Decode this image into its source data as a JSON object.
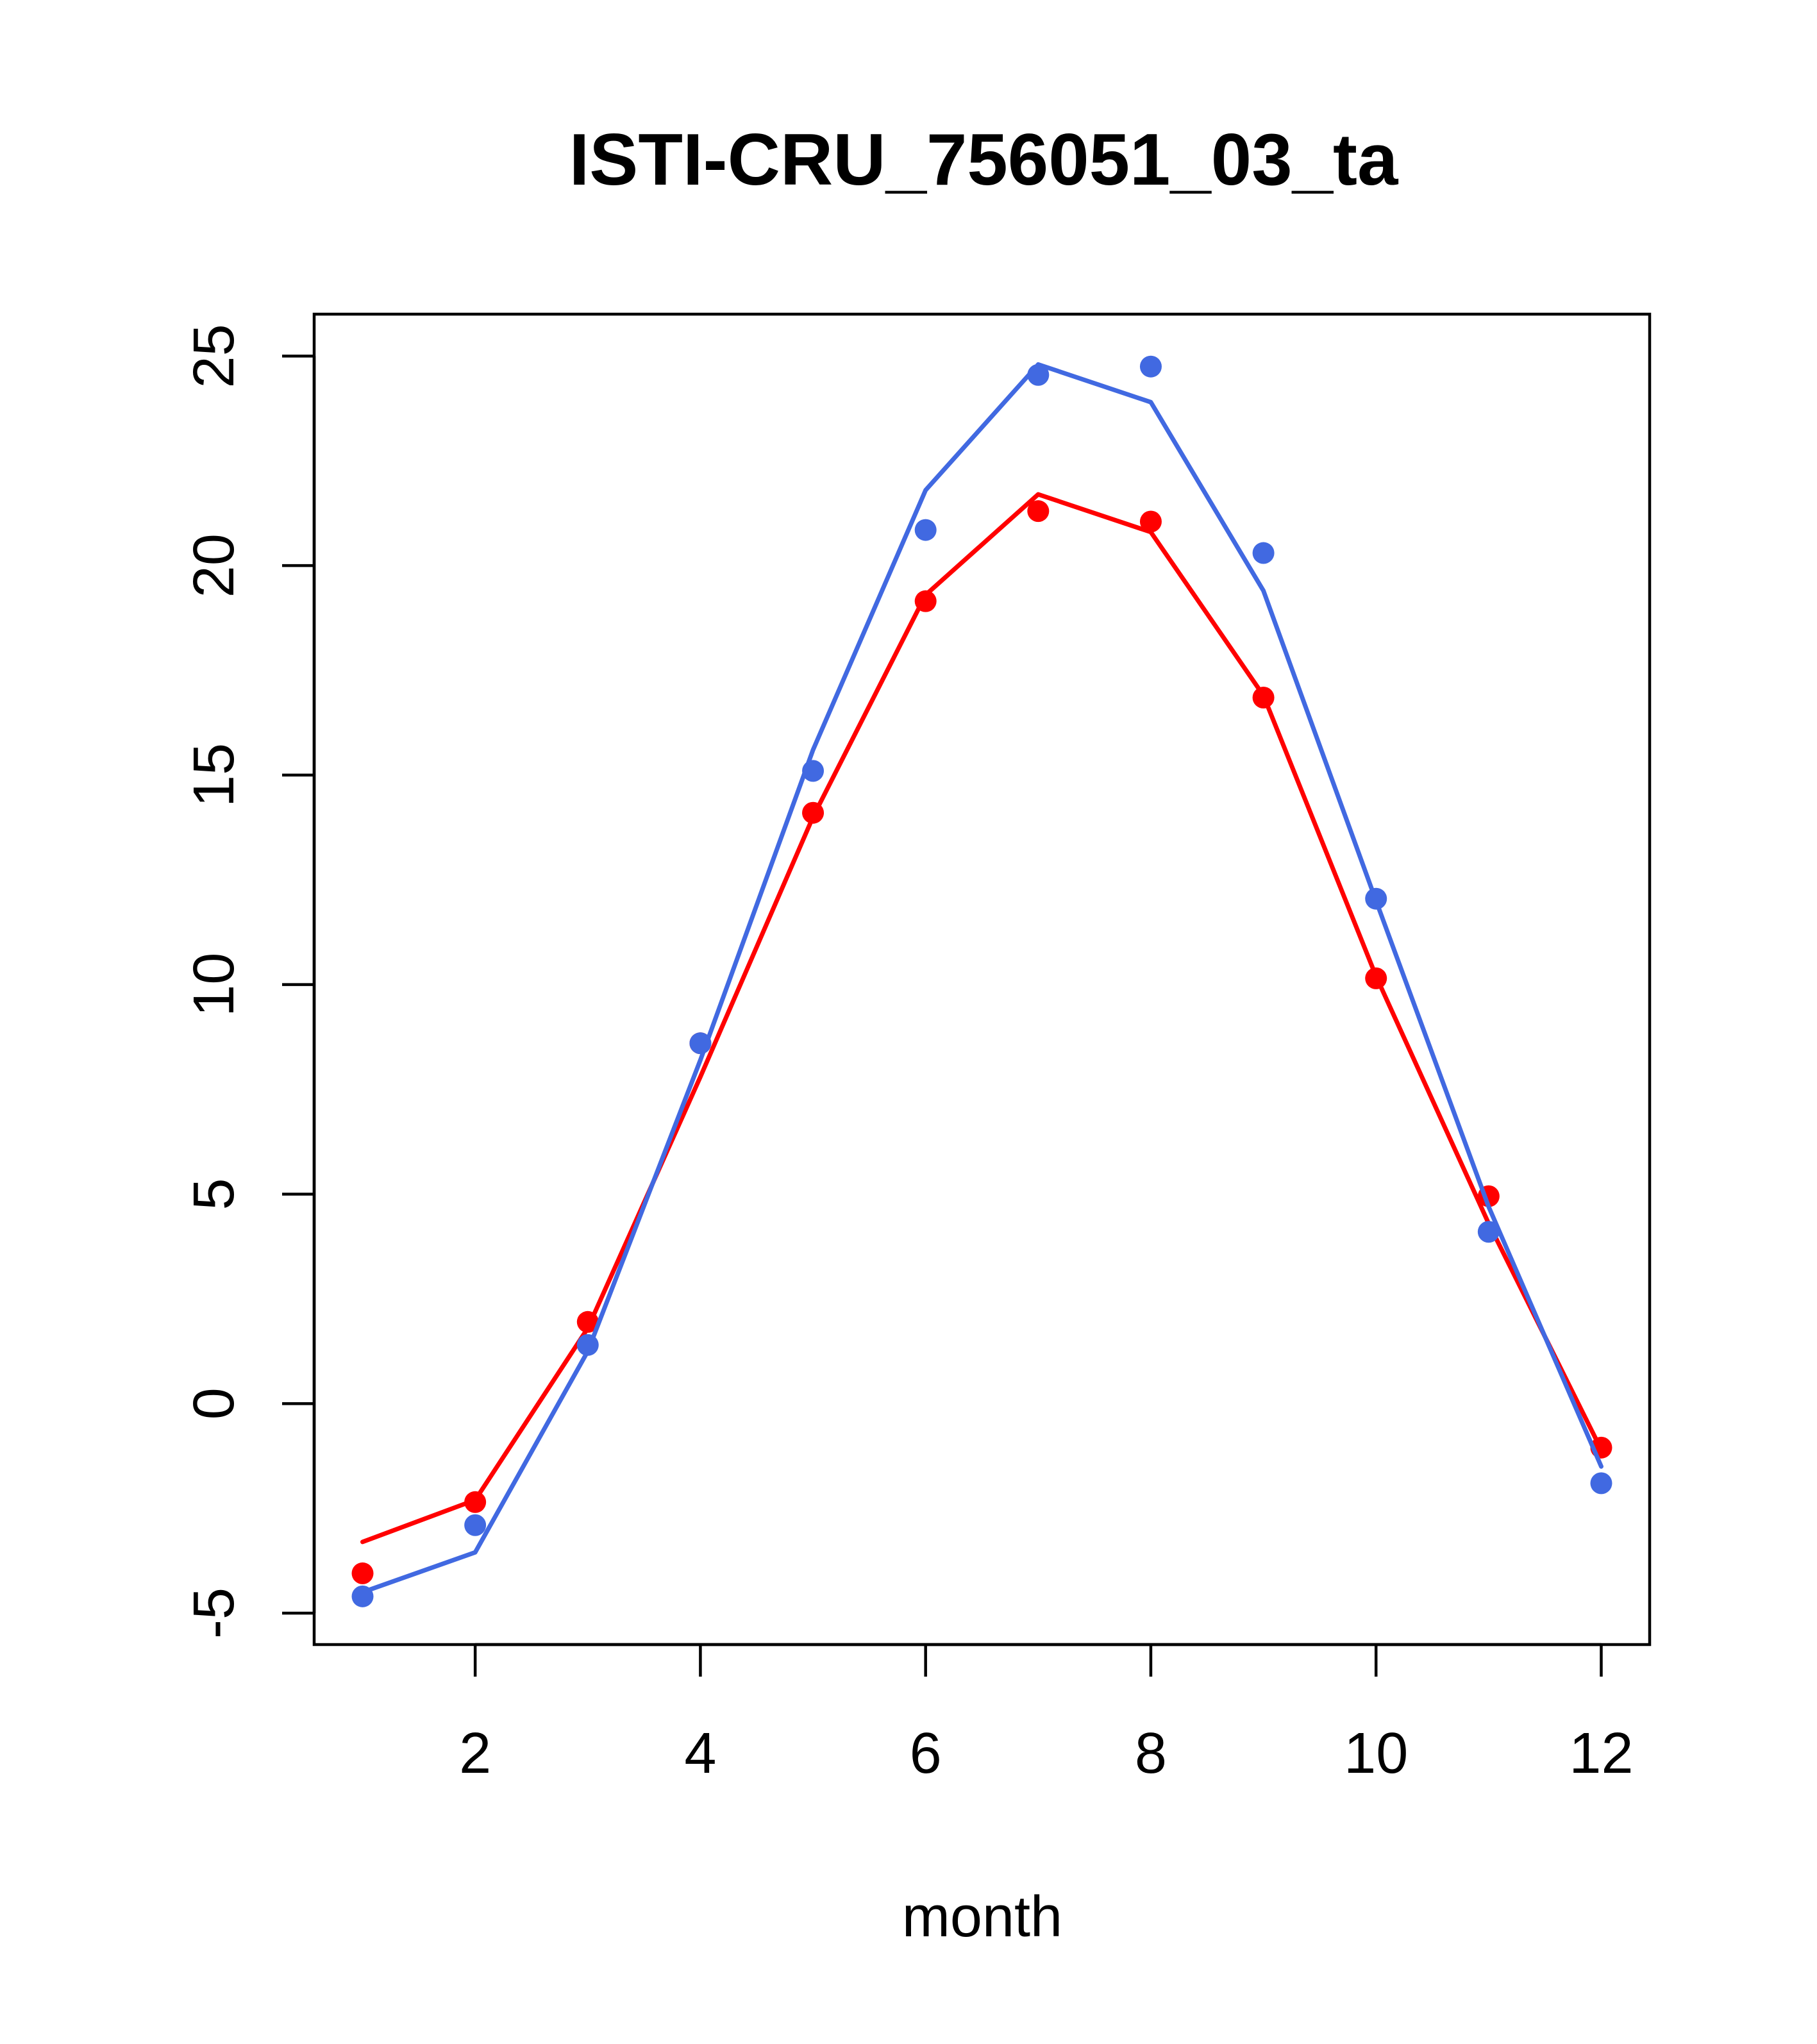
{
  "chart_data": {
    "type": "line",
    "title": "ISTI-CRU_756051_03_ta",
    "xlabel": "month",
    "ylabel": "",
    "xlim": [
      0.57,
      12.43
    ],
    "ylim": [
      -5.75,
      26
    ],
    "x_ticks": [
      2,
      4,
      6,
      8,
      10,
      12
    ],
    "y_ticks": [
      -5,
      0,
      5,
      10,
      15,
      20,
      25
    ],
    "grid": false,
    "legend": "none",
    "series": [
      {
        "color": "#ff0000",
        "line": {
          "x": [
            1,
            2,
            3,
            4,
            5,
            6,
            7,
            8,
            9,
            10,
            11,
            12
          ],
          "y": [
            -3.3,
            -2.3,
            1.8,
            7.8,
            14.0,
            19.3,
            21.7,
            20.8,
            16.9,
            10.2,
            4.3,
            -1.1
          ]
        },
        "points": {
          "x": [
            1,
            2,
            3,
            4,
            5,
            6,
            7,
            8,
            9,
            10,
            11,
            12
          ],
          "y": [
            -4.05,
            -2.35,
            1.95,
            8.6,
            14.1,
            19.15,
            21.3,
            21.05,
            16.85,
            10.15,
            4.95,
            -1.05
          ]
        }
      },
      {
        "color": "#4169e1",
        "line": {
          "x": [
            1,
            2,
            3,
            4,
            5,
            6,
            7,
            8,
            9,
            10,
            11,
            12
          ],
          "y": [
            -4.5,
            -3.55,
            1.25,
            8.2,
            15.6,
            21.8,
            24.8,
            23.9,
            19.4,
            12.0,
            4.7,
            -1.5
          ]
        },
        "points": {
          "x": [
            1,
            2,
            3,
            4,
            5,
            6,
            7,
            8,
            9,
            10,
            11,
            12
          ],
          "y": [
            -4.6,
            -2.9,
            1.4,
            8.6,
            15.1,
            20.85,
            24.55,
            24.75,
            20.3,
            12.05,
            4.1,
            -1.9
          ]
        }
      }
    ]
  }
}
